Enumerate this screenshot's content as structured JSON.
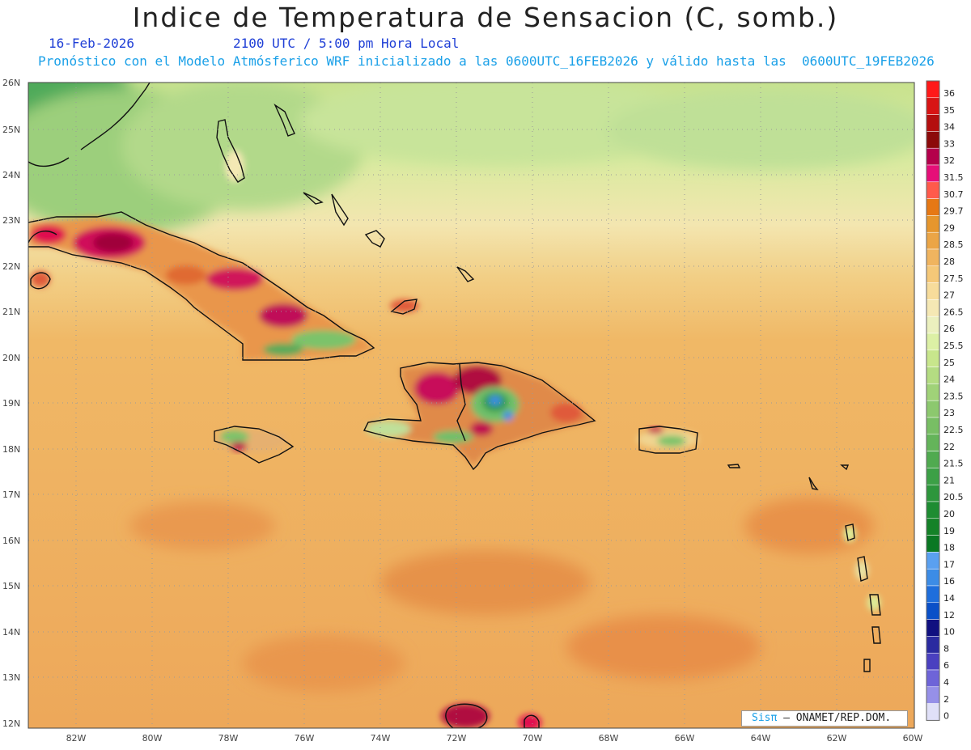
{
  "header": {
    "title": "Indice de Temperatura de Sensacion (C, somb.)",
    "date": "16-Feb-2026",
    "time": "2100 UTC / 5:00 pm Hora Local",
    "model_line": "Pronóstico con el Modelo Atmósferico WRF inicializado a las 0600UTC_16FEB2026 y válido hasta las  0600UTC_19FEB2026"
  },
  "axes": {
    "lat_labels": [
      "26N",
      "25N",
      "24N",
      "23N",
      "22N",
      "21N",
      "20N",
      "19N",
      "18N",
      "17N",
      "16N",
      "15N",
      "14N",
      "13N",
      "12N"
    ],
    "lon_labels": [
      "82W",
      "80W",
      "78W",
      "76W",
      "74W",
      "72W",
      "70W",
      "68W",
      "66W",
      "64W",
      "62W",
      "60W"
    ]
  },
  "colorbar": {
    "labels": [
      "36",
      "35",
      "34",
      "33",
      "32",
      "31.5",
      "30.7",
      "29.7",
      "29",
      "28.5",
      "28",
      "27.5",
      "27",
      "26.5",
      "26",
      "25.5",
      "25",
      "24",
      "23.5",
      "23",
      "22.5",
      "22",
      "21.5",
      "21",
      "20.5",
      "20",
      "19",
      "18",
      "17",
      "16",
      "14",
      "12",
      "10",
      "8",
      "6",
      "4",
      "2",
      "0"
    ],
    "colors": [
      "#ff1a1a",
      "#d81414",
      "#b40f0f",
      "#8c0a0a",
      "#b4004b",
      "#e60f78",
      "#ff5a4b",
      "#e67814",
      "#e6962d",
      "#eba546",
      "#f0b45f",
      "#f5c878",
      "#f7dc9b",
      "#f5e8b4",
      "#ebf0be",
      "#dcf0a5",
      "#c8e68c",
      "#b4dc82",
      "#a0d278",
      "#8cc86e",
      "#78be64",
      "#64b45a",
      "#50aa50",
      "#3ca046",
      "#2d963c",
      "#1e8c32",
      "#148228",
      "#0a7823",
      "#5aa0f0",
      "#3c8ce6",
      "#1e6edc",
      "#0a50c8",
      "#101080",
      "#2a2aa0",
      "#4a40c0",
      "#6e64d8",
      "#9690e8",
      "#e0e0f8"
    ]
  },
  "credit": {
    "logo": "Sisπ",
    "text": " – ONAMET/REP.DOM."
  }
}
